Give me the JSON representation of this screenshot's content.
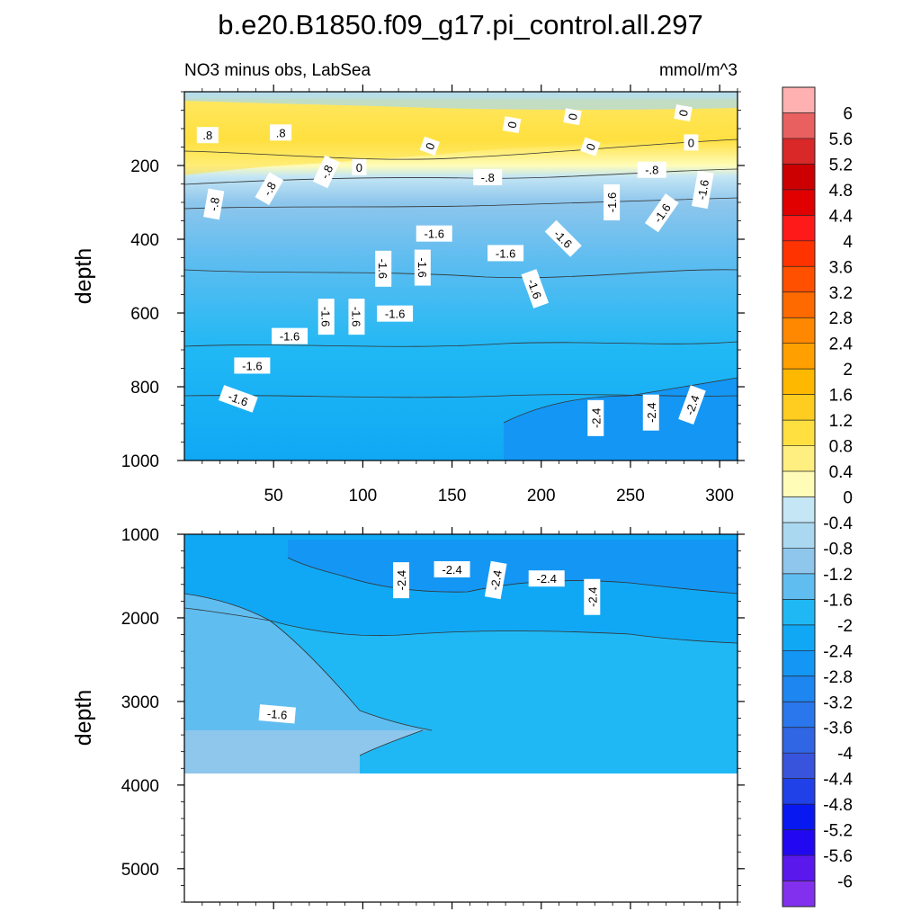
{
  "chart_data": {
    "type": "heatmap",
    "title": "b.e20.B1850.f09_g17.pi_control.all.297",
    "subtitle_left": "NO3 minus obs, LabSea",
    "subtitle_right": "mmol/m^3",
    "colorbar": {
      "levels": [
        "6",
        "5.6",
        "5.2",
        "4.8",
        "4.4",
        "4",
        "3.6",
        "3.2",
        "2.8",
        "2.4",
        "2",
        "1.6",
        "1.2",
        "0.8",
        "0.4",
        "0",
        "-0.4",
        "-0.8",
        "-1.2",
        "-1.6",
        "-2",
        "-2.4",
        "-2.8",
        "-3.2",
        "-3.6",
        "-4",
        "-4.4",
        "-4.8",
        "-5.2",
        "-5.6",
        "-6"
      ],
      "colors": [
        "#ffb0b0",
        "#e86060",
        "#d82828",
        "#cc0000",
        "#e00000",
        "#ff1a1a",
        "#ff3300",
        "#ff5000",
        "#ff6a00",
        "#ff8800",
        "#ffa000",
        "#ffb800",
        "#ffcc20",
        "#ffe040",
        "#ffef80",
        "#fffcb8",
        "#c4e6f5",
        "#aad8f0",
        "#8ec6ec",
        "#60bdf0",
        "#20b8f4",
        "#10a8f4",
        "#1496f4",
        "#1e86f0",
        "#2a76ec",
        "#3066e4",
        "#3854dc",
        "#2040e8",
        "#0818f0",
        "#2208f0",
        "#5a18ec",
        "#8230ee"
      ]
    },
    "panels": [
      {
        "name": "upper",
        "ylabel": "depth",
        "ylim": [
          1000,
          0
        ],
        "yticks": [
          "200",
          "400",
          "600",
          "800",
          "1000"
        ],
        "xlim": [
          0,
          310
        ],
        "xticks": [
          "50",
          "100",
          "150",
          "200",
          "250",
          "300"
        ],
        "contour_labels": [
          {
            "t": ".8",
            "x": 13,
            "y": 120,
            "r": 0
          },
          {
            "t": ".8",
            "x": 54,
            "y": 113,
            "r": 0
          },
          {
            "t": "-.8",
            "x": 80,
            "y": 218,
            "r": -65
          },
          {
            "t": "0",
            "x": 98,
            "y": 207,
            "r": 0
          },
          {
            "t": "-.8",
            "x": 48,
            "y": 264,
            "r": -60
          },
          {
            "t": "-.8",
            "x": 17,
            "y": 305,
            "r": -80
          },
          {
            "t": "0",
            "x": 138,
            "y": 148,
            "r": -70
          },
          {
            "t": "0",
            "x": 184,
            "y": 90,
            "r": -80
          },
          {
            "t": "0",
            "x": 218,
            "y": 68,
            "r": -80
          },
          {
            "t": "0",
            "x": 280,
            "y": 58,
            "r": -80
          },
          {
            "t": "0",
            "x": 228,
            "y": 150,
            "r": -70
          },
          {
            "t": "0",
            "x": 284,
            "y": 140,
            "r": 0
          },
          {
            "t": "-.8",
            "x": 170,
            "y": 234,
            "r": 0
          },
          {
            "t": "-.8",
            "x": 262,
            "y": 214,
            "r": 0
          },
          {
            "t": "-1.6",
            "x": 240,
            "y": 300,
            "r": -90
          },
          {
            "t": "-1.6",
            "x": 291,
            "y": 266,
            "r": -80
          },
          {
            "t": "-1.6",
            "x": 268,
            "y": 330,
            "r": -55
          },
          {
            "t": "-1.6",
            "x": 140,
            "y": 387,
            "r": 0
          },
          {
            "t": "-1.6",
            "x": 212,
            "y": 400,
            "r": 45
          },
          {
            "t": "-1.6",
            "x": 180,
            "y": 440,
            "r": 0
          },
          {
            "t": "-1.6",
            "x": 111,
            "y": 480,
            "r": 90
          },
          {
            "t": "-1.6",
            "x": 133,
            "y": 477,
            "r": 90
          },
          {
            "t": "-1.6",
            "x": 196,
            "y": 535,
            "r": 70
          },
          {
            "t": "-1.6",
            "x": 79,
            "y": 610,
            "r": 90
          },
          {
            "t": "-1.6",
            "x": 96,
            "y": 610,
            "r": 90
          },
          {
            "t": "-1.6",
            "x": 118,
            "y": 604,
            "r": 0
          },
          {
            "t": "-1.6",
            "x": 59,
            "y": 665,
            "r": 0
          },
          {
            "t": "-1.6",
            "x": 38,
            "y": 745,
            "r": 0
          },
          {
            "t": "-1.6",
            "x": 30,
            "y": 835,
            "r": 20
          },
          {
            "t": "-2.4",
            "x": 231,
            "y": 885,
            "r": -90
          },
          {
            "t": "-2.4",
            "x": 262,
            "y": 870,
            "r": -90
          },
          {
            "t": "-2.4",
            "x": 285,
            "y": 850,
            "r": -70
          }
        ]
      },
      {
        "name": "lower",
        "ylabel": "depth",
        "ylim": [
          5400,
          1000
        ],
        "yticks": [
          "1000",
          "2000",
          "3000",
          "4000",
          "5000"
        ],
        "xlim": [
          0,
          310
        ],
        "bottom_of_data": 3850,
        "contour_labels": [
          {
            "t": "-2.4",
            "x": 122,
            "y": 1550,
            "r": -90
          },
          {
            "t": "-2.4",
            "x": 150,
            "y": 1430,
            "r": 0
          },
          {
            "t": "-2.4",
            "x": 175,
            "y": 1550,
            "r": -80
          },
          {
            "t": "-2.4",
            "x": 203,
            "y": 1540,
            "r": 0
          },
          {
            "t": "-2.4",
            "x": 229,
            "y": 1750,
            "r": -90
          },
          {
            "t": "-1.6",
            "x": 52,
            "y": 3160,
            "r": 5
          }
        ]
      }
    ]
  }
}
